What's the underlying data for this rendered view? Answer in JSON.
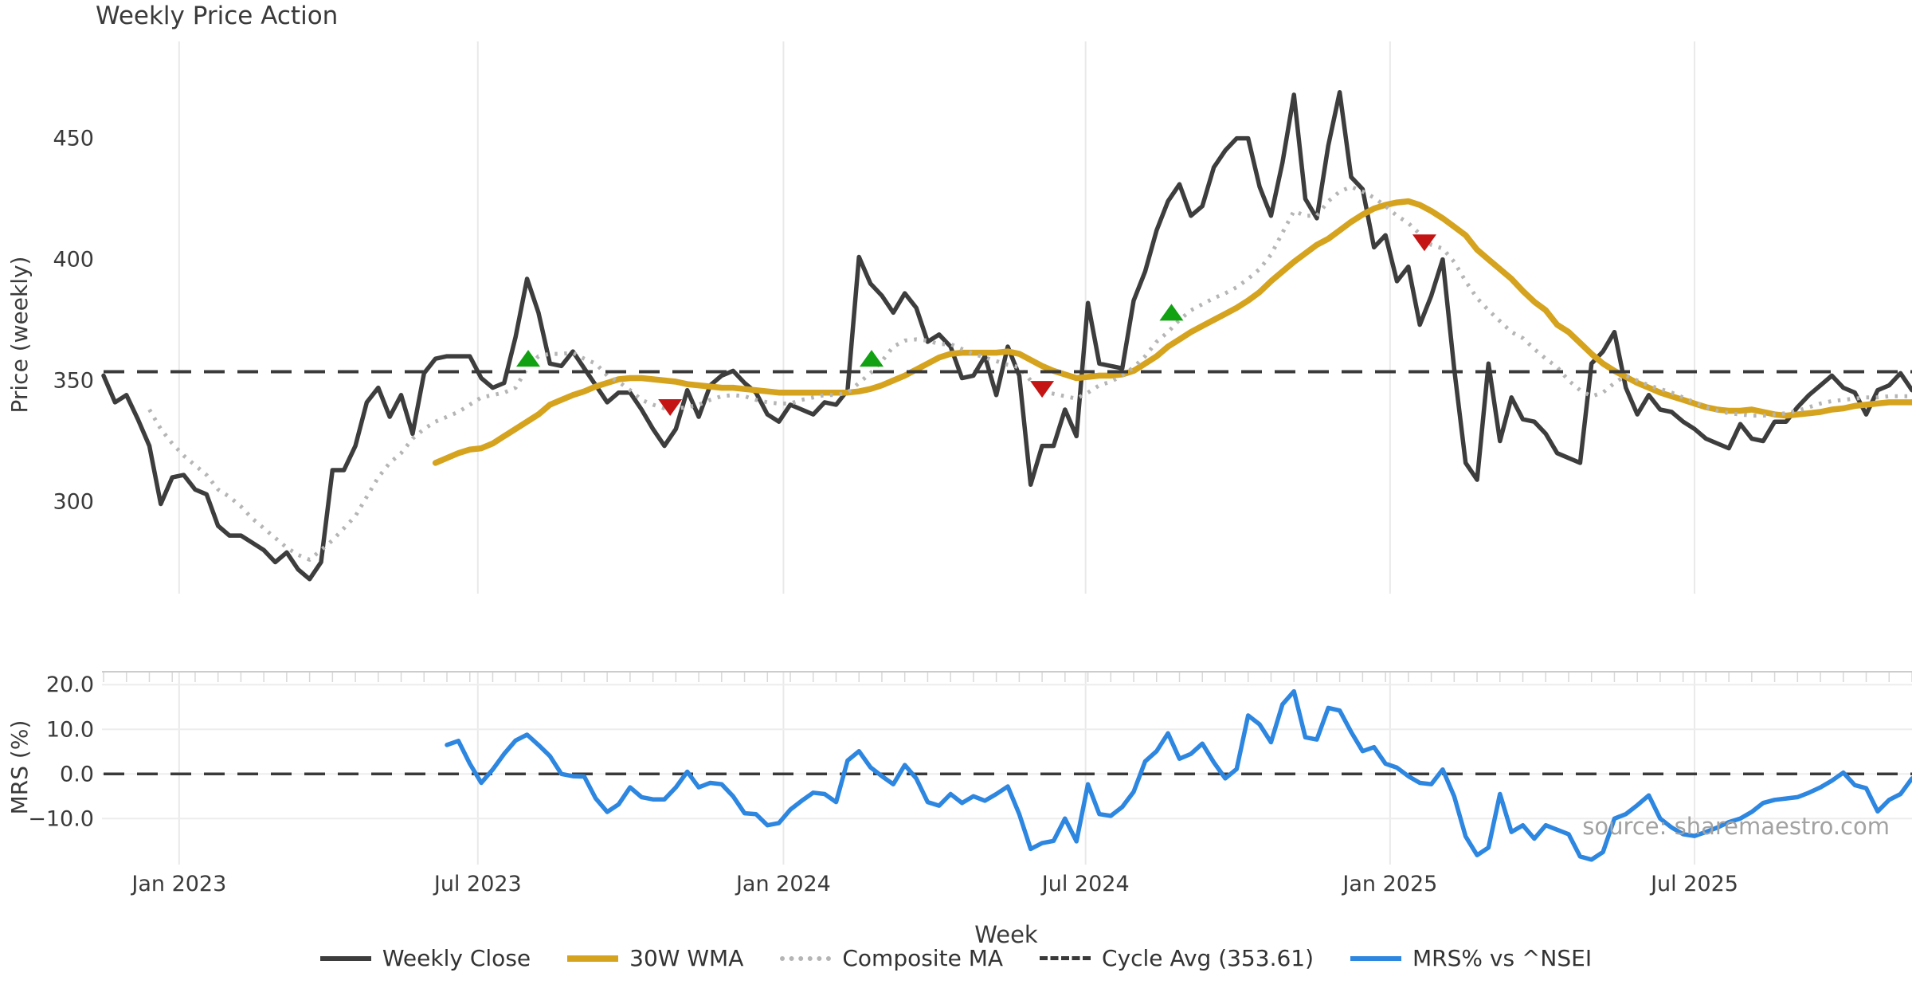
{
  "title": "Weekly Price Action",
  "watermark": "source: sharemaestro.com",
  "legend": {
    "items": [
      {
        "key": "weekly_close",
        "label": "Weekly Close",
        "style": "solid",
        "weight": 6
      },
      {
        "key": "wma30",
        "label": "30W WMA",
        "style": "solid",
        "weight": 8
      },
      {
        "key": "composite",
        "label": "Composite MA",
        "style": "dotted",
        "weight": 6
      },
      {
        "key": "cycle_avg",
        "label": "Cycle Avg (353.61)",
        "style": "dashed",
        "weight": 5
      },
      {
        "key": "mrs",
        "label": "MRS% vs ^NSEI",
        "style": "solid",
        "weight": 6
      }
    ]
  },
  "chart_data": {
    "type": "line",
    "title": "Weekly Price Action",
    "xlabel": "Week",
    "x_unit": "weekly index from first plotted week",
    "weeks_total": 158,
    "cycle_avg": 353.61,
    "colors": {
      "weekly_close": "#3d3d3d",
      "wma30": "#d5a31d",
      "composite": "#b5b5b5",
      "cycle_avg": "#3a3a3a",
      "mrs": "#2d86e0",
      "buy": "#12a112",
      "sell": "#c41414",
      "grid": "#e9e9e9",
      "spine": "#cccccc",
      "minor_tick": "#d8d8d8",
      "tick_text": "#3a3a3a"
    },
    "x_ticks": [
      {
        "week": 6.6,
        "label": "Jan 2023"
      },
      {
        "week": 32.7,
        "label": "Jul 2023"
      },
      {
        "week": 59.4,
        "label": "Jan 2024"
      },
      {
        "week": 85.8,
        "label": "Jul 2024"
      },
      {
        "week": 112.4,
        "label": "Jan 2025"
      },
      {
        "week": 139.0,
        "label": "Jul 2025"
      }
    ],
    "panels": {
      "price": {
        "ylabel": "Price (weekly)",
        "ylim": [
          262,
          490
        ],
        "grid": "vertical-only",
        "yticks": [
          {
            "value": 450,
            "label": "450"
          },
          {
            "value": 400,
            "label": "400"
          },
          {
            "value": 350,
            "label": "350"
          },
          {
            "value": 300,
            "label": "300"
          }
        ]
      },
      "mrs": {
        "ylabel": "MRS (%)",
        "ylim": [
          -20.3,
          22.9
        ],
        "grid": "horizontal-and-vertical",
        "yticks": [
          {
            "value": 20,
            "label": "20.0"
          },
          {
            "value": 10,
            "label": "10.0"
          },
          {
            "value": 0,
            "label": "0.0"
          },
          {
            "value": -10,
            "label": "−10.0"
          }
        ]
      }
    },
    "series": [
      {
        "name": "Weekly Close",
        "key": "weekly_close",
        "panel": "price",
        "start_week": 0,
        "values": [
          352,
          341,
          344,
          334,
          323,
          299,
          310,
          311,
          305,
          303,
          290,
          286,
          286,
          283,
          280,
          275,
          279,
          272,
          268,
          275,
          313,
          313,
          323,
          341,
          347,
          335,
          344,
          328,
          353,
          359,
          360,
          360,
          360,
          351,
          347,
          349,
          368,
          392,
          378,
          357,
          356,
          362,
          355,
          348,
          341,
          345,
          345,
          338,
          330,
          323,
          330,
          346,
          335,
          348,
          352,
          354,
          349,
          345,
          336,
          333,
          340,
          338,
          336,
          341,
          340,
          346,
          401,
          390,
          385,
          378,
          386,
          380,
          366,
          369,
          364,
          351,
          352,
          360,
          344,
          364,
          352,
          307,
          323,
          323,
          338,
          327,
          382,
          357,
          356,
          355,
          383,
          395,
          412,
          424,
          431,
          418,
          422,
          438,
          445,
          450,
          450,
          430,
          418,
          440,
          468,
          425,
          417,
          447,
          469,
          434,
          429,
          405,
          410,
          391,
          397,
          373,
          385,
          400,
          355,
          316,
          309,
          357,
          325,
          343,
          334,
          333,
          328,
          320,
          318,
          316,
          357,
          362,
          370,
          347,
          336,
          344,
          338,
          337,
          333,
          330,
          326,
          324,
          322,
          332,
          326,
          325,
          333,
          333,
          339,
          344,
          348,
          352,
          347,
          345,
          336,
          346,
          348,
          353,
          346
        ]
      },
      {
        "name": "30W WMA",
        "key": "wma30",
        "panel": "price",
        "start_week": 29,
        "values": [
          316,
          318,
          320,
          321.5,
          322,
          324,
          327,
          330,
          333,
          336,
          340,
          342,
          344,
          345.5,
          347.5,
          349,
          350.5,
          351,
          351,
          350.5,
          350,
          349.5,
          348.5,
          348,
          347.5,
          347,
          347,
          346.5,
          346,
          345.5,
          345,
          345,
          345,
          345,
          345,
          345,
          345,
          345.5,
          346.5,
          348,
          350,
          352,
          354.5,
          357,
          359.5,
          361,
          361.5,
          361.5,
          361.5,
          361.5,
          362,
          361,
          358.5,
          356,
          354,
          352.5,
          351,
          351.5,
          352,
          352,
          352.5,
          354,
          357,
          360,
          364,
          367,
          370,
          372.5,
          375,
          377.5,
          380,
          383,
          386.5,
          391,
          395,
          399,
          402.5,
          406,
          408.5,
          412,
          415.5,
          418.5,
          421,
          422.5,
          423.5,
          424,
          422.5,
          420,
          417,
          413.5,
          410,
          404,
          400,
          396,
          392,
          387,
          382.5,
          379,
          373,
          370,
          365.5,
          361,
          357,
          354,
          351.5,
          349,
          347,
          345,
          343.5,
          342,
          340.5,
          339,
          338,
          337.5,
          337.5,
          338,
          337,
          336,
          335.5,
          336,
          336.5,
          337,
          338,
          338.5,
          339.5,
          340,
          340.5,
          341,
          341,
          341
        ]
      },
      {
        "name": "Composite MA",
        "key": "composite",
        "panel": "price",
        "start_week": 4,
        "values": [
          338,
          330,
          324,
          319,
          315,
          311,
          305,
          302,
          298,
          293,
          289,
          285,
          281,
          278,
          276,
          280,
          284,
          289,
          294,
          302,
          310,
          316,
          320,
          326,
          330,
          333,
          335,
          337,
          340,
          343,
          344,
          345,
          347,
          355,
          360,
          361,
          361,
          361.5,
          359,
          357,
          352,
          349.5,
          346,
          342,
          340,
          338.5,
          338.5,
          339,
          340,
          342,
          343.5,
          344,
          343.5,
          342,
          341,
          340.5,
          340.5,
          342,
          343,
          344,
          344,
          345,
          349,
          353,
          358,
          364,
          366.5,
          367,
          366.5,
          365,
          365,
          363,
          361,
          359.5,
          358,
          356.5,
          355.5,
          350,
          345.5,
          344.5,
          343.5,
          342.5,
          345,
          348,
          349.5,
          352,
          355.5,
          360,
          366,
          370,
          375,
          379,
          381.5,
          384,
          386,
          388.5,
          392,
          396,
          402,
          411,
          420,
          418,
          418,
          424,
          428,
          430,
          428,
          425.5,
          422,
          418,
          415,
          410.5,
          406,
          404.5,
          399,
          391,
          384,
          379,
          374.5,
          370,
          367.5,
          363,
          359,
          355.5,
          350,
          346,
          343.5,
          345,
          349,
          352,
          350,
          348,
          346.5,
          345,
          343,
          341,
          339,
          337.5,
          336.5,
          336,
          335.5,
          335.5,
          336,
          336.5,
          337.5,
          339,
          340.5,
          341.5,
          342,
          342.5,
          343,
          343,
          343.5,
          343.5,
          343.5
        ]
      },
      {
        "name": "MRS% vs ^NSEI",
        "key": "mrs",
        "panel": "mrs",
        "start_week": 30,
        "values": [
          6.5,
          7.4,
          2.3,
          -2,
          1,
          4.5,
          7.5,
          8.8,
          6.5,
          4,
          0,
          -0.5,
          -0.6,
          -5.5,
          -8.5,
          -6.8,
          -3,
          -5.2,
          -5.7,
          -5.7,
          -3,
          0.5,
          -3,
          -2,
          -2.3,
          -5,
          -8.8,
          -9,
          -11.5,
          -11,
          -8,
          -6,
          -4.2,
          -4.5,
          -6.3,
          3,
          5.1,
          1.5,
          -0.5,
          -2.3,
          2,
          -1,
          -6.3,
          -7.1,
          -4.5,
          -6.5,
          -5,
          -6,
          -4.5,
          -2.8,
          -9,
          -16.8,
          -15.5,
          -15,
          -10,
          -15.1,
          -2.3,
          -9,
          -9.4,
          -7.4,
          -4,
          2.8,
          5.1,
          9.1,
          3.4,
          4.5,
          6.8,
          2.6,
          -1,
          1.1,
          13.1,
          11.1,
          7.1,
          15.6,
          18.5,
          8.2,
          7.7,
          14.8,
          14.2,
          9.4,
          5.1,
          6,
          2.3,
          1.4,
          -0.5,
          -2,
          -2.3,
          1,
          -5,
          -14,
          -18.2,
          -16.5,
          -4.5,
          -13,
          -11.5,
          -14.5,
          -11.5,
          -12.5,
          -13.5,
          -18.5,
          -19.2,
          -17.5,
          -10,
          -9,
          -7,
          -4.8,
          -10,
          -12,
          -13.5,
          -13.9,
          -13,
          -12,
          -10.8,
          -10,
          -8.5,
          -6.5,
          -5.8,
          -5.5,
          -5.2,
          -4.2,
          -3,
          -1.5,
          0.3,
          -2.5,
          -3.2,
          -8.4,
          -5.8,
          -4.5,
          -1
        ]
      }
    ],
    "signals": {
      "buy": [
        {
          "week": 37.1,
          "value": 359
        },
        {
          "week": 67.1,
          "value": 359
        },
        {
          "week": 93.3,
          "value": 378
        }
      ],
      "sell": [
        {
          "week": 49.5,
          "value": 339
        },
        {
          "week": 82.0,
          "value": 346.5
        },
        {
          "week": 115.4,
          "value": 407
        }
      ]
    }
  }
}
